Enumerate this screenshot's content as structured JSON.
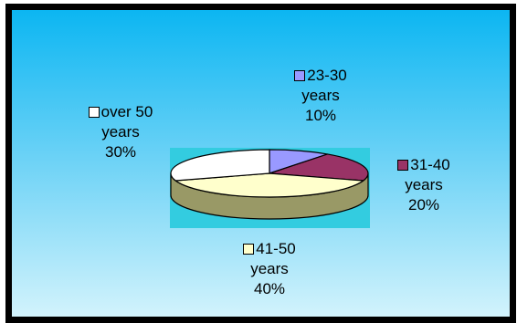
{
  "chart_data": {
    "type": "pie",
    "style": "3d",
    "title": "",
    "categories": [
      "23-30 years",
      "31-40 years",
      "41-50 years",
      "over 50 years"
    ],
    "values": [
      10,
      20,
      40,
      30
    ],
    "unit": "%",
    "colors": [
      "#9999ff",
      "#993366",
      "#ffffcc",
      "#ffffff"
    ],
    "legend": "none",
    "data_labels": [
      {
        "name_line1": "23-30",
        "name_line2": "years",
        "value": "10%"
      },
      {
        "name_line1": "31-40",
        "name_line2": "years",
        "value": "20%"
      },
      {
        "name_line1": "41-50",
        "name_line2": "years",
        "value": "40%"
      },
      {
        "name_line1": "over 50",
        "name_line2": "years",
        "value": "30%"
      }
    ]
  },
  "colors": {
    "frame_border": "#000000",
    "background_top": "#0cb6f2",
    "background_bottom": "#d2f3fc",
    "plot_area": "#33cce0",
    "side_fill": "#999966"
  }
}
